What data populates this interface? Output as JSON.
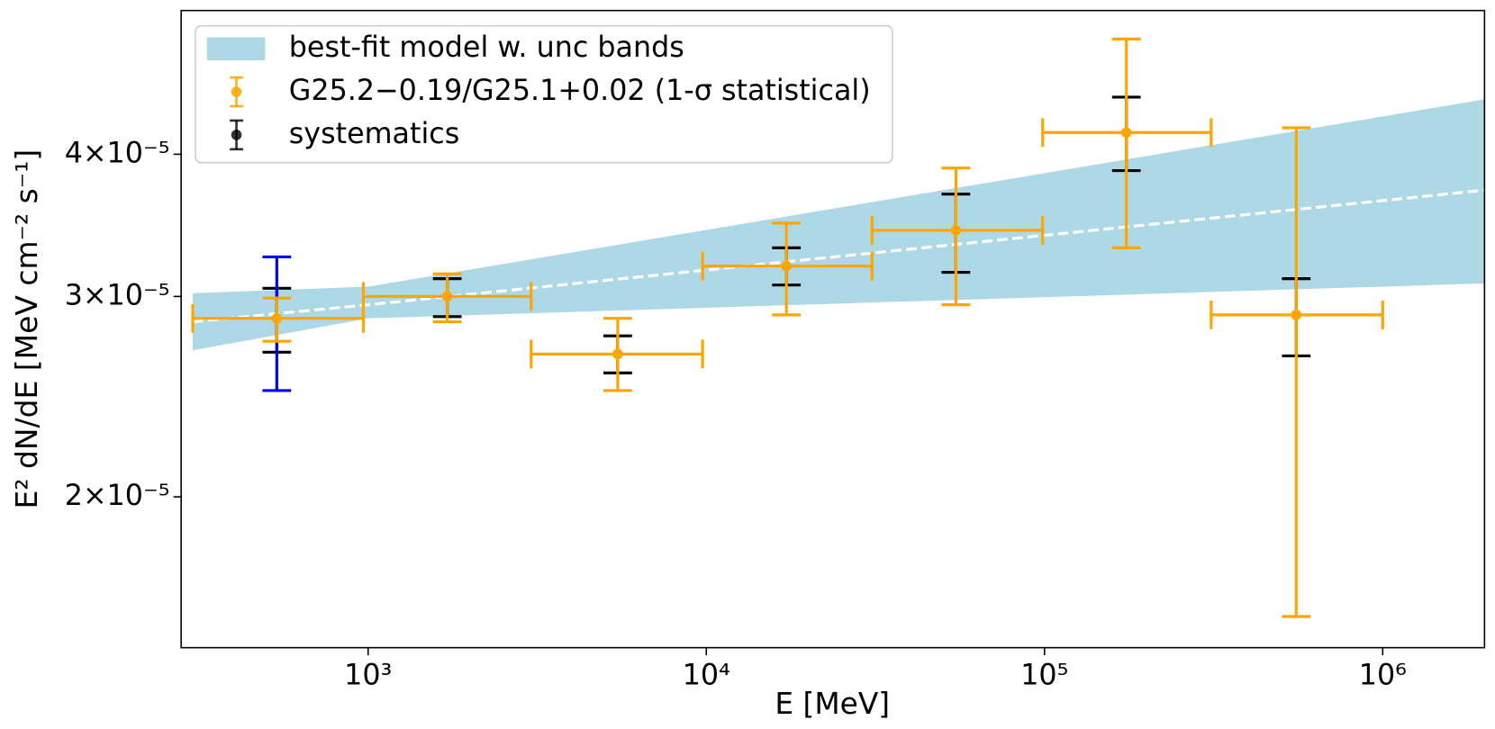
{
  "chart_data": {
    "type": "errorbar",
    "xlabel": "E [MeV]",
    "ylabel": "E² dN/dE [MeV cm⁻² s⁻¹]",
    "xscale": "log",
    "yscale": "log",
    "xlim": [
      280,
      2000000
    ],
    "ylim": [
      1.474e-05,
      5.35e-05
    ],
    "xticks": [
      {
        "value": 1000,
        "label": "10³"
      },
      {
        "value": 10000,
        "label": "10⁴"
      },
      {
        "value": 100000,
        "label": "10⁵"
      },
      {
        "value": 1000000,
        "label": "10⁶"
      }
    ],
    "yticks": [
      {
        "value": 2e-05,
        "label": "2×10⁻⁵"
      },
      {
        "value": 3e-05,
        "label": "3×10⁻⁵"
      },
      {
        "value": 4e-05,
        "label": "4×10⁻⁵"
      }
    ],
    "legend": "upper left",
    "model": {
      "name": "best-fit model w. unc bands",
      "color": "#add8e6",
      "line_color": "#ffffff",
      "x": [
        303,
        1000,
        2000000
      ],
      "lower": [
        2.69e-05,
        2.87e-05,
        3.08e-05
      ],
      "upper": [
        3.02e-05,
        3.06e-05,
        4.47e-05
      ],
      "best": [
        2.85e-05,
        2.95e-05,
        3.72e-05
      ]
    },
    "series": [
      {
        "name": "G25.2−0.19/G25.1+0.02 (1-σ statistical)",
        "color": "#ffa500",
        "x": [
          537,
          1714,
          5470,
          17250,
          54700,
          174600,
          555000
        ],
        "values": [
          2.87e-05,
          3e-05,
          2.67e-05,
          3.19e-05,
          3.43e-05,
          4.18e-05,
          2.89e-05
        ],
        "x_lower": [
          303,
          968,
          3034,
          9750,
          30900,
          98700,
          311000
        ],
        "x_upper": [
          968,
          3034,
          9750,
          30900,
          98700,
          311000,
          1000000
        ],
        "y_lower": [
          2.74e-05,
          2.85e-05,
          2.48e-05,
          2.89e-05,
          2.95e-05,
          3.31e-05,
          1.57e-05
        ],
        "y_upper": [
          2.99e-05,
          3.14e-05,
          2.87e-05,
          3.48e-05,
          3.89e-05,
          5.05e-05,
          4.22e-05
        ]
      },
      {
        "name": "systematics",
        "color": "#000000",
        "x": [
          537,
          1714,
          5470,
          17250,
          54700,
          174600,
          555000
        ],
        "values": [
          2.87e-05,
          3e-05,
          2.67e-05,
          3.19e-05,
          3.43e-05,
          4.18e-05,
          2.89e-05
        ],
        "y_lower": [
          2.68e-05,
          2.88e-05,
          2.57e-05,
          3.07e-05,
          3.15e-05,
          3.87e-05,
          2.66e-05
        ],
        "y_upper": [
          3.05e-05,
          3.11e-05,
          2.77e-05,
          3.31e-05,
          3.69e-05,
          4.49e-05,
          3.11e-05
        ]
      },
      {
        "color": "#0000ff",
        "x": [
          537
        ],
        "values": [
          2.87e-05
        ],
        "y_lower": [
          2.48e-05
        ],
        "y_upper": [
          3.25e-05
        ]
      }
    ]
  }
}
